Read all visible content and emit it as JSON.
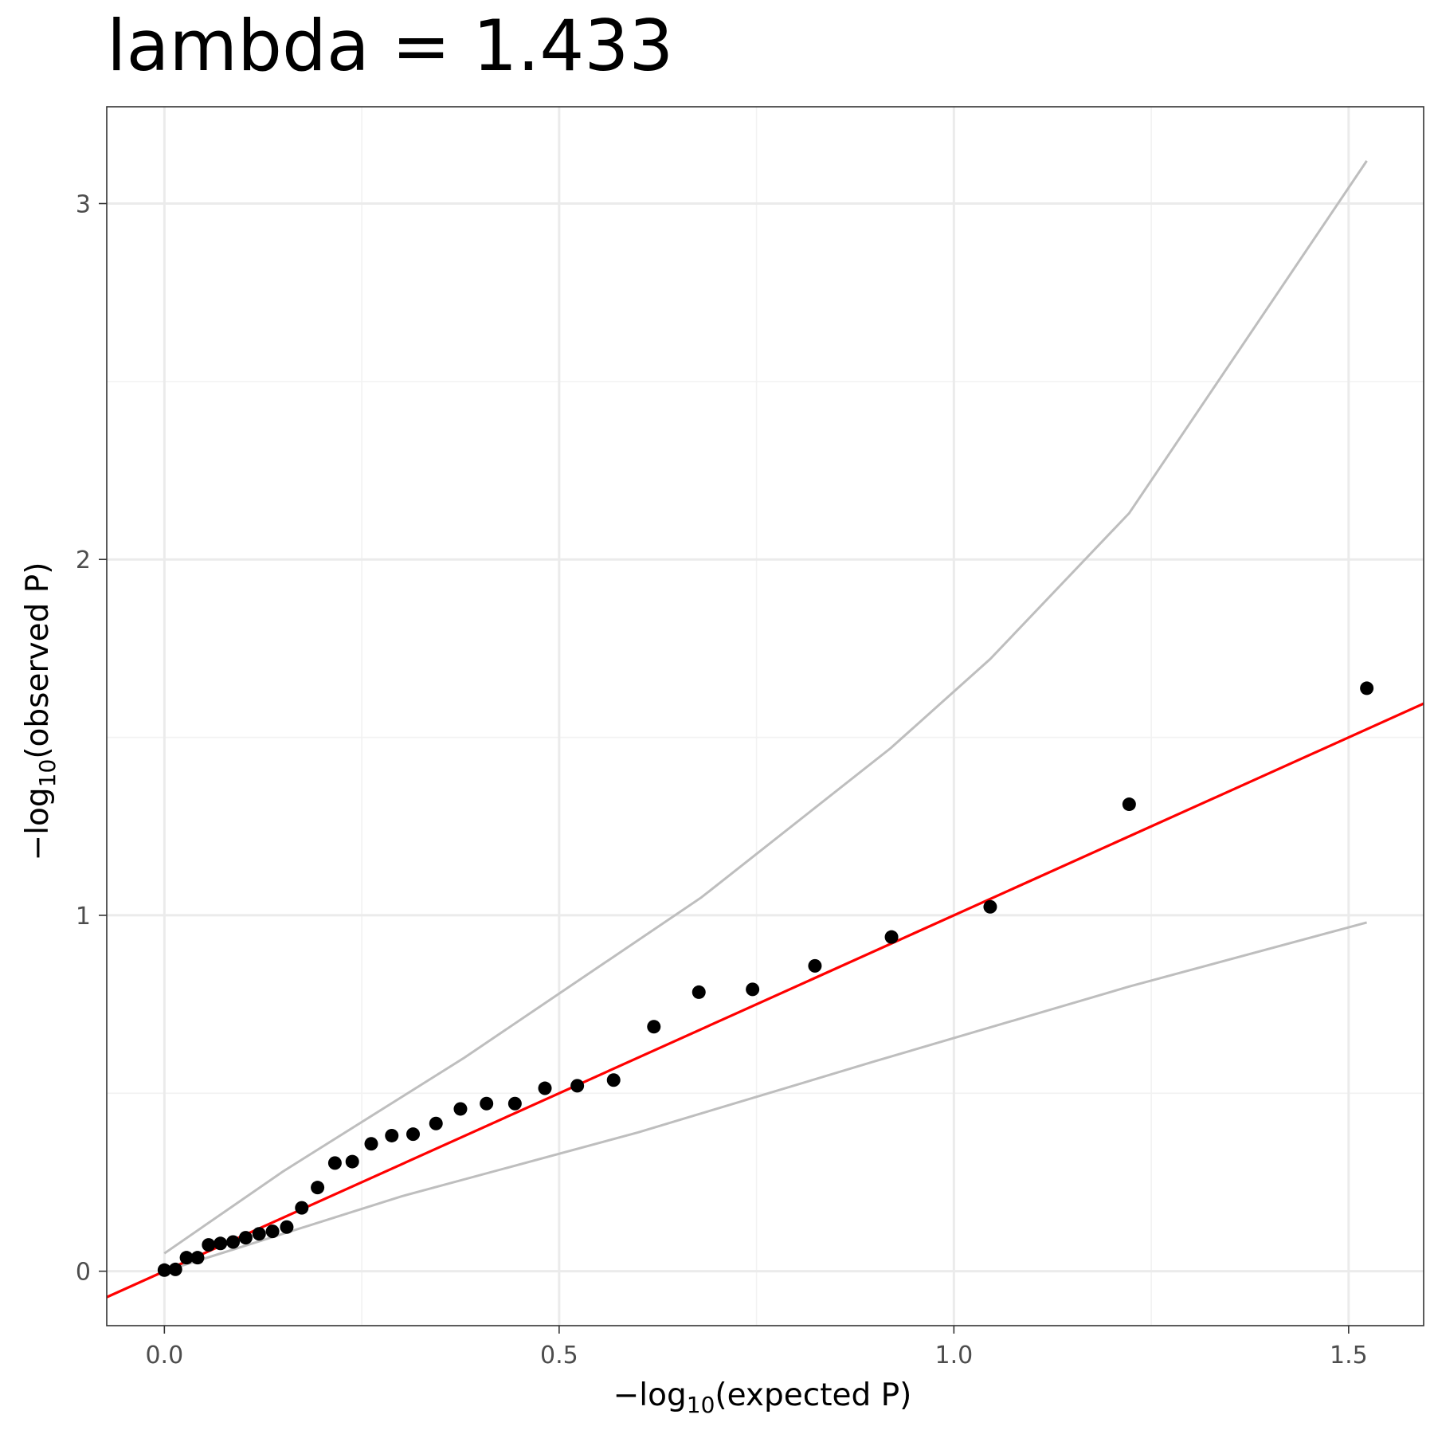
{
  "chart_data": {
    "type": "scatter",
    "title": "lambda = 1.433",
    "xlabel": {
      "prefix": "−log",
      "sub": "10",
      "suffix": "(expected P)"
    },
    "ylabel": {
      "prefix": "−log",
      "sub": "10",
      "suffix": "(observed P)"
    },
    "xlim": [
      -0.073,
      1.595
    ],
    "ylim": [
      -0.153,
      3.272
    ],
    "x_ticks": [
      {
        "value": 0.0,
        "label": "0.0"
      },
      {
        "value": 0.5,
        "label": "0.5"
      },
      {
        "value": 1.0,
        "label": "1.0"
      },
      {
        "value": 1.5,
        "label": "1.5"
      }
    ],
    "y_ticks": [
      {
        "value": 0,
        "label": "0"
      },
      {
        "value": 1,
        "label": "1"
      },
      {
        "value": 2,
        "label": "2"
      },
      {
        "value": 3,
        "label": "3"
      }
    ],
    "x_minor": [
      0.25,
      0.75,
      1.25
    ],
    "y_minor": [
      0.5,
      1.5,
      2.5
    ],
    "grid": true,
    "points": [
      {
        "x": 0.0,
        "y": 0.003
      },
      {
        "x": 0.014,
        "y": 0.005
      },
      {
        "x": 0.028,
        "y": 0.038
      },
      {
        "x": 0.042,
        "y": 0.038
      },
      {
        "x": 0.056,
        "y": 0.074
      },
      {
        "x": 0.071,
        "y": 0.078
      },
      {
        "x": 0.087,
        "y": 0.082
      },
      {
        "x": 0.103,
        "y": 0.094
      },
      {
        "x": 0.12,
        "y": 0.105
      },
      {
        "x": 0.137,
        "y": 0.112
      },
      {
        "x": 0.155,
        "y": 0.124
      },
      {
        "x": 0.174,
        "y": 0.178
      },
      {
        "x": 0.194,
        "y": 0.235
      },
      {
        "x": 0.216,
        "y": 0.304
      },
      {
        "x": 0.238,
        "y": 0.308
      },
      {
        "x": 0.262,
        "y": 0.358
      },
      {
        "x": 0.288,
        "y": 0.381
      },
      {
        "x": 0.315,
        "y": 0.385
      },
      {
        "x": 0.344,
        "y": 0.415
      },
      {
        "x": 0.375,
        "y": 0.456
      },
      {
        "x": 0.408,
        "y": 0.471
      },
      {
        "x": 0.444,
        "y": 0.471
      },
      {
        "x": 0.482,
        "y": 0.514
      },
      {
        "x": 0.523,
        "y": 0.521
      },
      {
        "x": 0.569,
        "y": 0.537
      },
      {
        "x": 0.62,
        "y": 0.687
      },
      {
        "x": 0.677,
        "y": 0.784
      },
      {
        "x": 0.745,
        "y": 0.792
      },
      {
        "x": 0.824,
        "y": 0.858
      },
      {
        "x": 0.921,
        "y": 0.939
      },
      {
        "x": 1.046,
        "y": 1.024
      },
      {
        "x": 1.222,
        "y": 1.312
      },
      {
        "x": 1.523,
        "y": 1.638
      }
    ],
    "reference_line": {
      "slope": 1,
      "intercept": 0,
      "color": "#ff0000"
    },
    "upper_band": [
      {
        "x": 0.0,
        "y": 0.05
      },
      {
        "x": 0.15,
        "y": 0.28
      },
      {
        "x": 0.38,
        "y": 0.6
      },
      {
        "x": 0.68,
        "y": 1.05
      },
      {
        "x": 0.92,
        "y": 1.47
      },
      {
        "x": 1.046,
        "y": 1.72
      },
      {
        "x": 1.222,
        "y": 2.13
      },
      {
        "x": 1.523,
        "y": 3.12
      }
    ],
    "lower_band": [
      {
        "x": 0.0,
        "y": 0.0
      },
      {
        "x": 0.1,
        "y": 0.07
      },
      {
        "x": 0.3,
        "y": 0.21
      },
      {
        "x": 0.6,
        "y": 0.39
      },
      {
        "x": 0.9,
        "y": 0.59
      },
      {
        "x": 1.222,
        "y": 0.8
      },
      {
        "x": 1.523,
        "y": 0.98
      }
    ],
    "band_color": "#bebebe",
    "point_color": "#000000"
  }
}
